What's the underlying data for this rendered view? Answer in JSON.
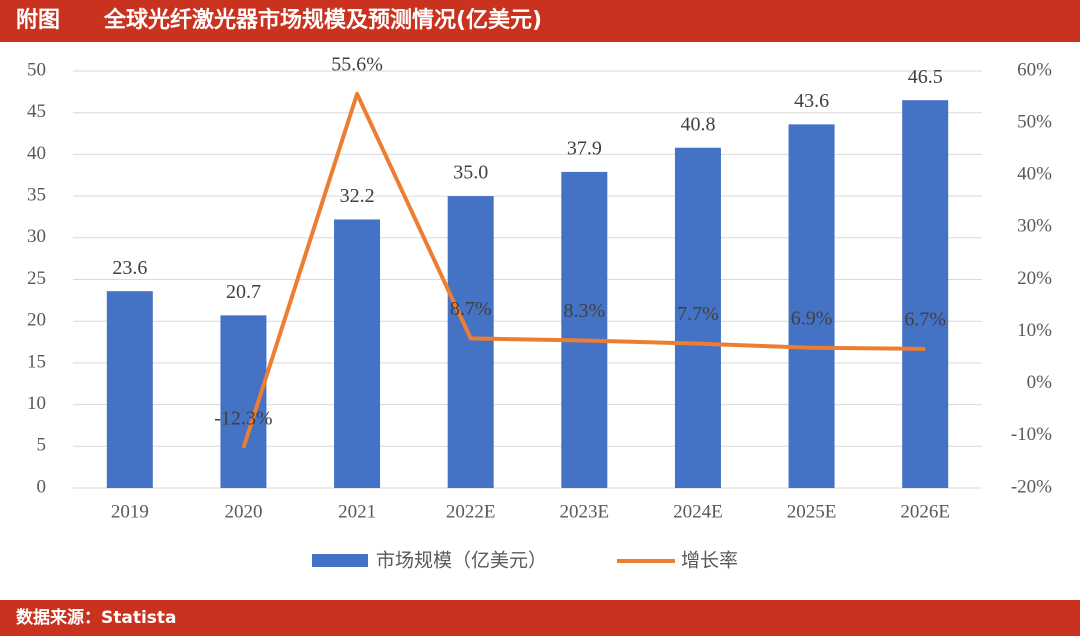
{
  "header": {
    "label": "附图",
    "title": "全球光纤激光器市场规模及预测情况(亿美元)"
  },
  "chart_data": {
    "type": "bar_line",
    "categories": [
      "2019",
      "2020",
      "2021",
      "2022E",
      "2023E",
      "2024E",
      "2025E",
      "2026E"
    ],
    "series": [
      {
        "name": "市场规模（亿美元）",
        "type": "bar",
        "color": "#4472c4",
        "values": [
          23.6,
          20.7,
          32.2,
          35,
          37.9,
          40.8,
          43.6,
          46.5
        ],
        "value_labels": [
          "23.6",
          "20.7",
          "32.2",
          "35.0",
          "37.9",
          "40.8",
          "43.6",
          "46.5"
        ]
      },
      {
        "name": "增长率",
        "type": "line",
        "axis": "y2",
        "color": "#ed7d31",
        "values": [
          null,
          -12.3,
          55.6,
          8.7,
          8.3,
          7.7,
          6.9,
          6.7
        ],
        "value_labels": [
          null,
          "-12.3%",
          "55.6%",
          "8.7%",
          "8.3%",
          "7.7%",
          "6.9%",
          "6.7%"
        ]
      }
    ],
    "ylim": [
      0,
      50
    ],
    "yticks": [
      0,
      5,
      10,
      15,
      20,
      25,
      30,
      35,
      40,
      45,
      50
    ],
    "y2lim": [
      -20,
      60
    ],
    "y2ticks": [
      {
        "value": -20,
        "label": "-20%"
      },
      {
        "value": -10,
        "label": "-10%"
      },
      {
        "value": 0,
        "label": "0%"
      },
      {
        "value": 10,
        "label": "10%"
      },
      {
        "value": 20,
        "label": "20%"
      },
      {
        "value": 30,
        "label": "30%"
      },
      {
        "value": 40,
        "label": "40%"
      },
      {
        "value": 50,
        "label": "50%"
      },
      {
        "value": 60,
        "label": "60%"
      }
    ],
    "grid": true,
    "legend": "bottom"
  },
  "footer": {
    "source": "数据来源：Statista"
  }
}
